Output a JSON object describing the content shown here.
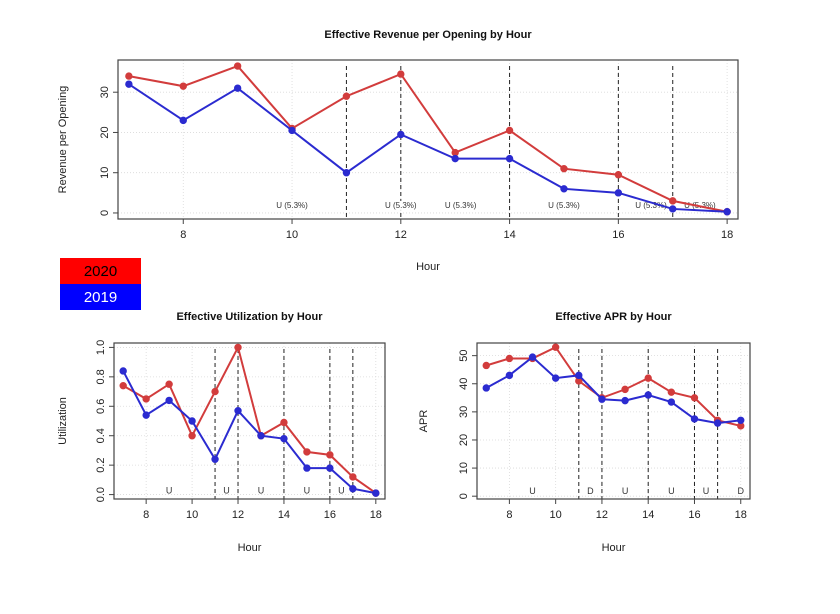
{
  "legend": [
    {
      "label": "2020",
      "color": "#ff0000"
    },
    {
      "label": "2019",
      "color": "#0000ff"
    }
  ],
  "colors": {
    "s2020": "#d23c3c",
    "s2019": "#2b2bd0"
  },
  "chart_data": [
    {
      "id": "revenue",
      "type": "line",
      "title": "Effective Revenue per Opening by Hour",
      "xlabel": "Hour",
      "ylabel": "Revenue per Opening",
      "xlim": [
        6.8,
        18.2
      ],
      "ylim": [
        -1.5,
        38
      ],
      "xticks": [
        8,
        10,
        12,
        14,
        16,
        18
      ],
      "yticks": [
        0,
        10,
        20,
        30
      ],
      "grid": true,
      "x": [
        7,
        8,
        9,
        10,
        11,
        12,
        13,
        14,
        15,
        16,
        17,
        18
      ],
      "series": [
        {
          "name": "2020",
          "values": [
            34,
            31.5,
            36.5,
            21,
            29,
            34.5,
            15,
            20.5,
            11,
            9.5,
            3,
            0.3
          ]
        },
        {
          "name": "2019",
          "values": [
            32,
            23,
            31,
            20.5,
            10,
            19.5,
            13.5,
            13.5,
            6,
            5,
            1,
            0.3
          ]
        }
      ],
      "vlines": [
        11,
        12,
        14,
        16,
        17
      ],
      "annotations": [
        {
          "x": 10,
          "y": 1,
          "text": "U (5.3%)"
        },
        {
          "x": 12.0,
          "y": 1,
          "text": "U (5.3%)"
        },
        {
          "x": 13.1,
          "y": 1,
          "text": "U (5.3%)"
        },
        {
          "x": 15.0,
          "y": 1,
          "text": "U (5.3%)"
        },
        {
          "x": 16.6,
          "y": 1,
          "text": "U (5.3%)"
        },
        {
          "x": 17.5,
          "y": 1,
          "text": "U (5.3%)"
        }
      ]
    },
    {
      "id": "utilization",
      "type": "line",
      "title": "Effective Utilization by Hour",
      "xlabel": "Hour",
      "ylabel": "Utilization",
      "xlim": [
        6.6,
        18.4
      ],
      "ylim": [
        -0.03,
        1.03
      ],
      "xticks": [
        8,
        10,
        12,
        14,
        16,
        18
      ],
      "yticks": [
        0.0,
        0.2,
        0.4,
        0.6,
        0.8,
        1.0
      ],
      "ytick_labels": [
        "0.0",
        "0.2",
        "0.4",
        "0.6",
        "0.8",
        "1.0"
      ],
      "grid": true,
      "x": [
        7,
        8,
        9,
        10,
        11,
        12,
        13,
        14,
        15,
        16,
        17,
        18
      ],
      "series": [
        {
          "name": "2020",
          "values": [
            0.74,
            0.65,
            0.75,
            0.4,
            0.7,
            1.0,
            0.4,
            0.49,
            0.29,
            0.27,
            0.12,
            0.01
          ]
        },
        {
          "name": "2019",
          "values": [
            0.84,
            0.54,
            0.64,
            0.5,
            0.24,
            0.57,
            0.4,
            0.38,
            0.18,
            0.18,
            0.04,
            0.01
          ]
        }
      ],
      "vlines": [
        11,
        12,
        14,
        16,
        17
      ],
      "annotations": [
        {
          "x": 9.0,
          "y": 0.0,
          "text": "U"
        },
        {
          "x": 11.5,
          "y": 0.0,
          "text": "U"
        },
        {
          "x": 13.0,
          "y": 0.0,
          "text": "U"
        },
        {
          "x": 15.0,
          "y": 0.0,
          "text": "U"
        },
        {
          "x": 16.5,
          "y": 0.0,
          "text": "U"
        }
      ]
    },
    {
      "id": "apr",
      "type": "line",
      "title": "Effective APR by Hour",
      "xlabel": "Hour",
      "ylabel": "APR",
      "xlim": [
        6.6,
        18.4
      ],
      "ylim": [
        -1,
        54.5
      ],
      "xticks": [
        8,
        10,
        12,
        14,
        16,
        18
      ],
      "yticks": [
        0,
        10,
        20,
        30,
        40,
        50
      ],
      "grid": true,
      "x": [
        7,
        8,
        9,
        10,
        11,
        12,
        13,
        14,
        15,
        16,
        17,
        18
      ],
      "series": [
        {
          "name": "2020",
          "values": [
            46.5,
            49,
            49,
            53,
            41,
            35,
            38,
            42,
            37,
            35,
            27,
            25
          ]
        },
        {
          "name": "2019",
          "values": [
            38.5,
            43,
            49.5,
            42,
            43,
            34.5,
            34,
            36,
            33.5,
            27.5,
            26,
            27
          ]
        }
      ],
      "vlines": [
        11,
        12,
        14,
        16,
        17
      ],
      "annotations": [
        {
          "x": 9.0,
          "y": 0.5,
          "text": "U"
        },
        {
          "x": 11.5,
          "y": 0.5,
          "text": "D"
        },
        {
          "x": 13.0,
          "y": 0.5,
          "text": "U"
        },
        {
          "x": 15.0,
          "y": 0.5,
          "text": "U"
        },
        {
          "x": 16.5,
          "y": 0.5,
          "text": "U"
        },
        {
          "x": 18.0,
          "y": 0.5,
          "text": "D"
        }
      ]
    }
  ]
}
